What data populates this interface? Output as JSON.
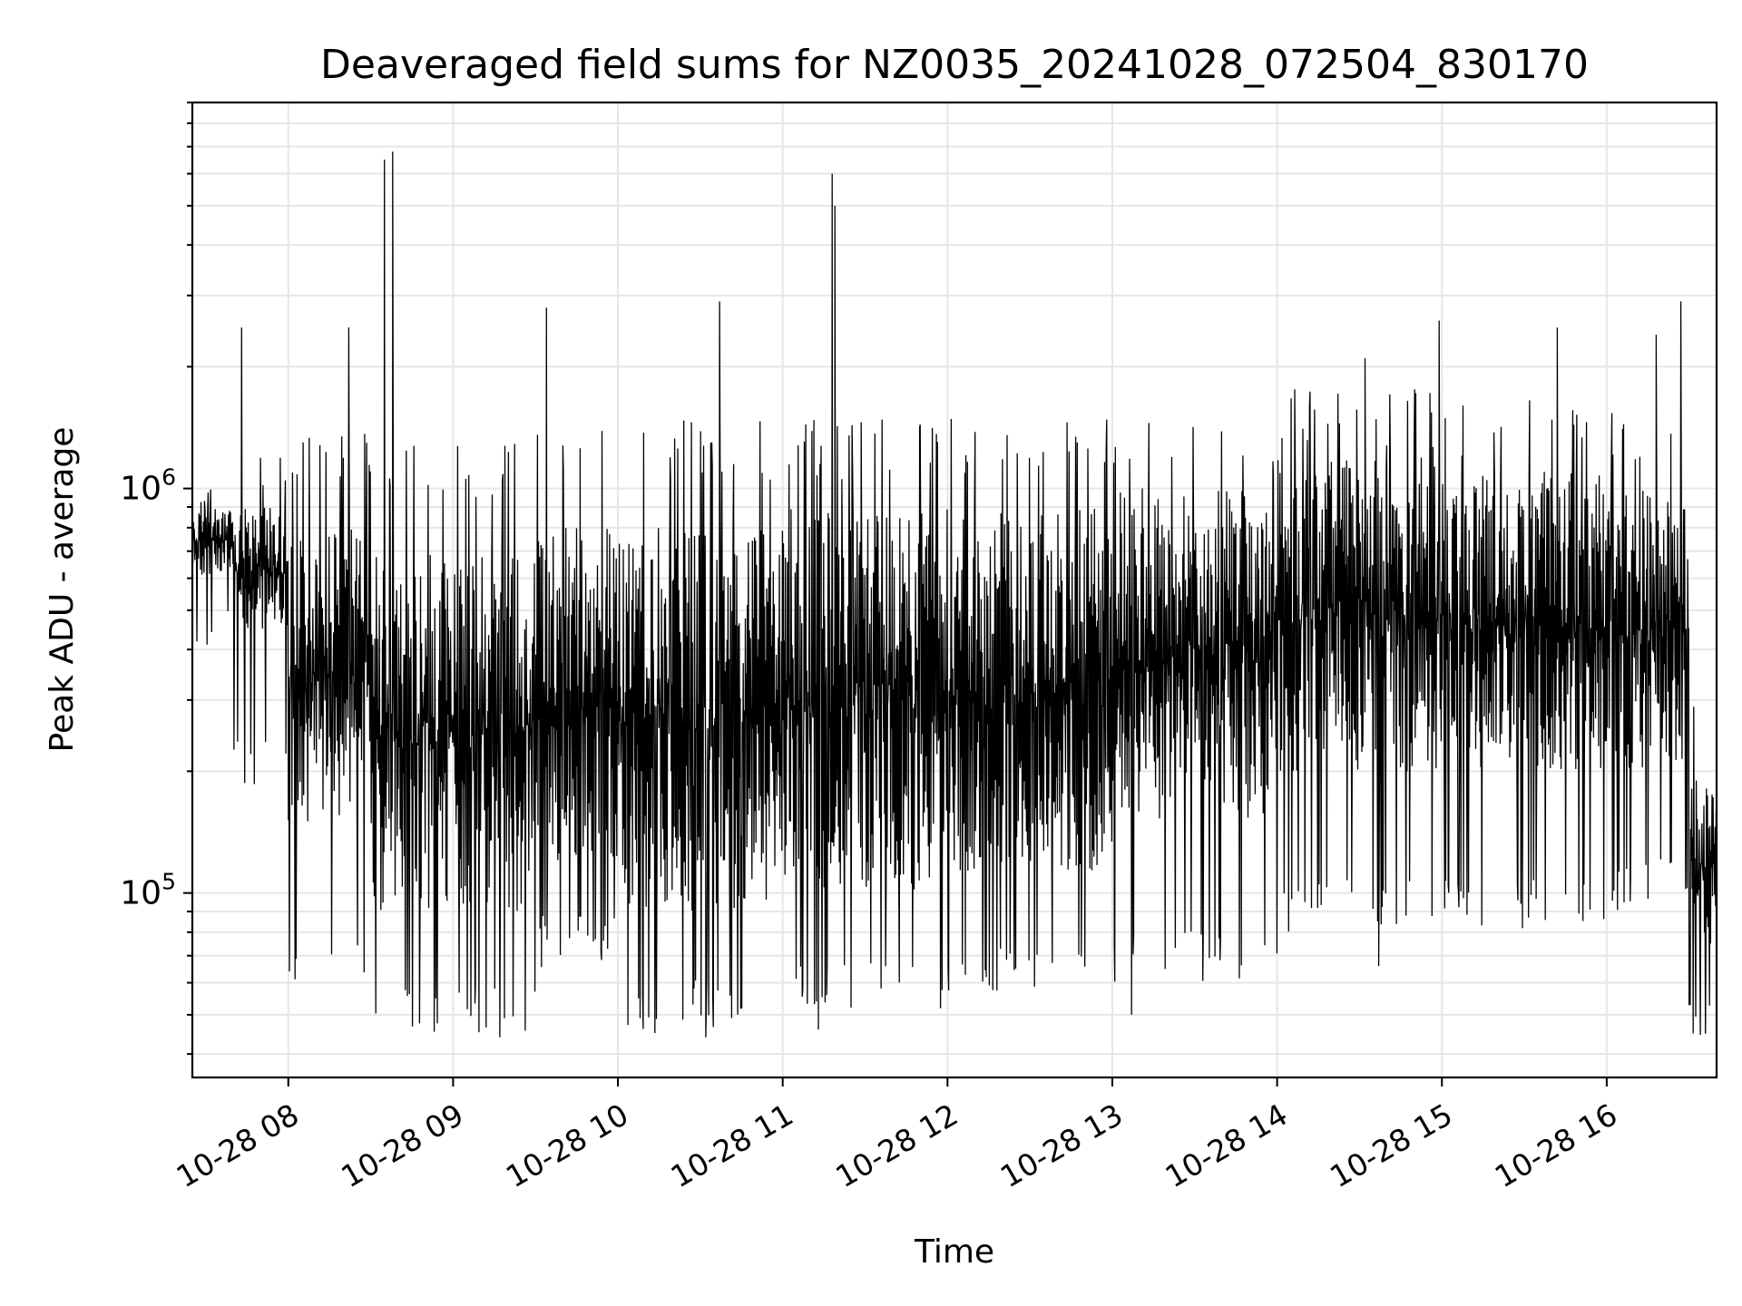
{
  "chart_data": {
    "type": "line",
    "title": "Deaveraged field sums for NZ0035_20241028_072504_830170",
    "xlabel": "Time",
    "ylabel": "Peak ADU - average",
    "x_scale": "time",
    "y_scale": "log",
    "xlim": [
      "2024-10-28 07:25:04",
      "2024-10-28 16:40:00"
    ],
    "ylim": [
      35000,
      9000000
    ],
    "grid": true,
    "legend": "none",
    "line_color": "#000000",
    "x_tick_labels": [
      "10-28 08",
      "10-28 09",
      "10-28 10",
      "10-28 11",
      "10-28 12",
      "10-28 13",
      "10-28 14",
      "10-28 15",
      "10-28 16"
    ],
    "x_ticks": [
      "2024-10-28 08:00",
      "2024-10-28 09:00",
      "2024-10-28 10:00",
      "2024-10-28 11:00",
      "2024-10-28 12:00",
      "2024-10-28 13:00",
      "2024-10-28 14:00",
      "2024-10-28 15:00",
      "2024-10-28 16:00"
    ],
    "y_major_ticks": [
      {
        "value": 100000,
        "base": "10",
        "exp": "5"
      },
      {
        "value": 1000000,
        "base": "10",
        "exp": "6"
      }
    ],
    "segments": [
      {
        "start": "2024-10-28 07:25",
        "end": "2024-10-28 07:40",
        "low": 400000,
        "high": 1000000,
        "typ_low": 600000,
        "typ_high": 900000
      },
      {
        "start": "2024-10-28 07:40",
        "end": "2024-10-28 08:00",
        "low": 180000,
        "high": 1200000,
        "typ_low": 450000,
        "typ_high": 900000
      },
      {
        "start": "2024-10-28 08:00",
        "end": "2024-10-28 08:30",
        "low": 60000,
        "high": 1400000,
        "typ_low": 150000,
        "typ_high": 800000
      },
      {
        "start": "2024-10-28 08:30",
        "end": "2024-10-28 09:30",
        "low": 45000,
        "high": 1300000,
        "typ_low": 90000,
        "typ_high": 700000
      },
      {
        "start": "2024-10-28 09:30",
        "end": "2024-10-28 10:00",
        "low": 65000,
        "high": 1400000,
        "typ_low": 120000,
        "typ_high": 800000
      },
      {
        "start": "2024-10-28 10:00",
        "end": "2024-10-28 11:00",
        "low": 45000,
        "high": 1500000,
        "typ_low": 90000,
        "typ_high": 800000
      },
      {
        "start": "2024-10-28 11:00",
        "end": "2024-10-28 12:00",
        "low": 50000,
        "high": 1500000,
        "typ_low": 100000,
        "typ_high": 900000
      },
      {
        "start": "2024-10-28 12:00",
        "end": "2024-10-28 13:00",
        "low": 55000,
        "high": 1500000,
        "typ_low": 110000,
        "typ_high": 900000
      },
      {
        "start": "2024-10-28 13:00",
        "end": "2024-10-28 14:00",
        "low": 60000,
        "high": 1500000,
        "typ_low": 150000,
        "typ_high": 1000000
      },
      {
        "start": "2024-10-28 14:00",
        "end": "2024-10-28 15:00",
        "low": 80000,
        "high": 1800000,
        "typ_low": 200000,
        "typ_high": 1200000
      },
      {
        "start": "2024-10-28 15:00",
        "end": "2024-10-28 16:00",
        "low": 80000,
        "high": 1700000,
        "typ_low": 200000,
        "typ_high": 1100000
      },
      {
        "start": "2024-10-28 16:00",
        "end": "2024-10-28 16:30",
        "low": 90000,
        "high": 1600000,
        "typ_low": 200000,
        "typ_high": 1000000
      },
      {
        "start": "2024-10-28 16:30",
        "end": "2024-10-28 16:40",
        "low": 40000,
        "high": 400000,
        "typ_low": 70000,
        "typ_high": 200000
      }
    ],
    "spikes": [
      {
        "time": "2024-10-28 08:35",
        "value": 6500000
      },
      {
        "time": "2024-10-28 08:38",
        "value": 6800000
      },
      {
        "time": "2024-10-28 07:43",
        "value": 2500000
      },
      {
        "time": "2024-10-28 08:22",
        "value": 2500000
      },
      {
        "time": "2024-10-28 09:34",
        "value": 2800000
      },
      {
        "time": "2024-10-28 10:37",
        "value": 2900000
      },
      {
        "time": "2024-10-28 11:18",
        "value": 6000000
      },
      {
        "time": "2024-10-28 11:19",
        "value": 5000000
      },
      {
        "time": "2024-10-28 14:32",
        "value": 2100000
      },
      {
        "time": "2024-10-28 14:59",
        "value": 2600000
      },
      {
        "time": "2024-10-28 15:42",
        "value": 2500000
      },
      {
        "time": "2024-10-28 16:27",
        "value": 2900000
      },
      {
        "time": "2024-10-28 16:18",
        "value": 2400000
      }
    ],
    "dips": [
      {
        "time": "2024-10-28 09:17",
        "value": 44000
      },
      {
        "time": "2024-10-28 10:32",
        "value": 44000
      },
      {
        "time": "2024-10-28 11:13",
        "value": 46000
      },
      {
        "time": "2024-10-28 13:07",
        "value": 50000
      },
      {
        "time": "2024-10-28 14:37",
        "value": 66000
      },
      {
        "time": "2024-10-28 16:40",
        "value": 40000
      }
    ]
  }
}
